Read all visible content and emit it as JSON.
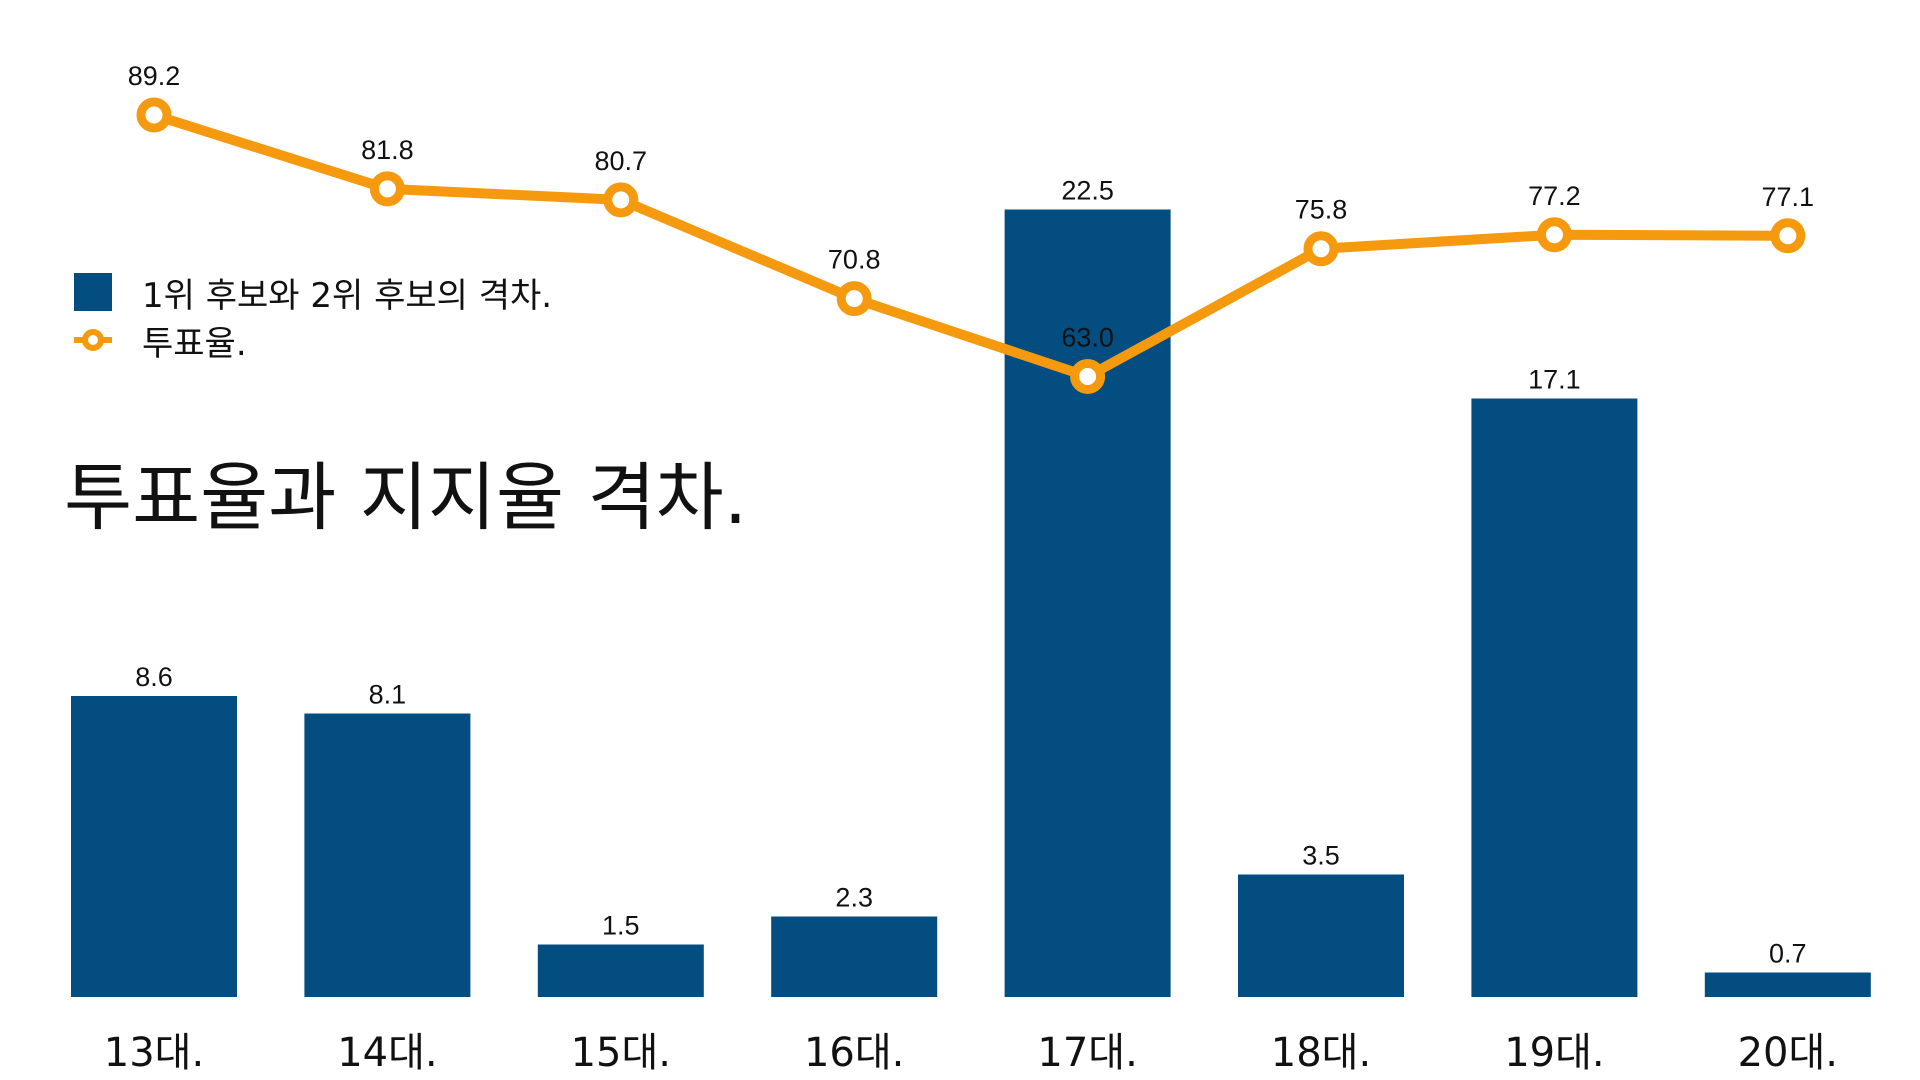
{
  "colors": {
    "bar": "#034d80",
    "line": "#f59a0f",
    "marker_fill": "#ffffff",
    "text": "#111111"
  },
  "chart_data": {
    "type": "bar",
    "title": "투표율과 지지율 격차.",
    "categories": [
      "13대.",
      "14대.",
      "15대.",
      "16대.",
      "17대.",
      "18대.",
      "19대.",
      "20대."
    ],
    "series": [
      {
        "name": "1위 후보와 2위 후보의 격차.",
        "type": "bar",
        "values": [
          8.6,
          8.1,
          1.5,
          2.3,
          22.5,
          3.5,
          17.1,
          0.7
        ],
        "labels": [
          "8.6",
          "8.1",
          "1.5",
          "2.3",
          "22.5",
          "3.5",
          "17.1",
          "0.7"
        ]
      },
      {
        "name": "투표율.",
        "type": "line",
        "values": [
          89.2,
          81.8,
          80.7,
          70.8,
          63.0,
          75.8,
          77.2,
          77.1
        ],
        "labels": [
          "89.2",
          "81.8",
          "80.7",
          "70.8",
          "63.0",
          "75.8",
          "77.2",
          "77.1"
        ]
      }
    ],
    "legend_position": "left",
    "grid": false,
    "xlabel": "",
    "ylabel": ""
  }
}
